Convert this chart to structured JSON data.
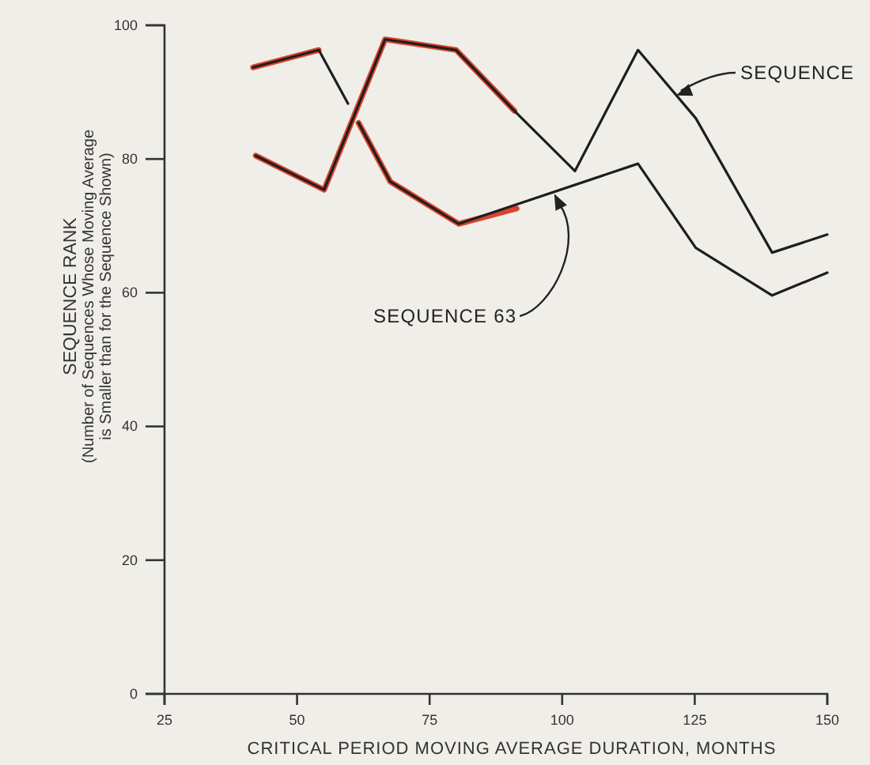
{
  "chart_data": {
    "type": "line",
    "xlabel": "CRITICAL PERIOD MOVING AVERAGE DURATION, MONTHS",
    "ylabel": "SEQUENCE RANK\n(Number of Sequences Whose Moving Average\nis Smaller than for the Sequence Shown)",
    "xlim": [
      25,
      150
    ],
    "xticks": [
      25,
      50,
      75,
      100,
      125,
      150
    ],
    "ylim": [
      0,
      100
    ],
    "yticks": [
      0,
      20,
      40,
      60,
      80,
      100
    ],
    "grid": false,
    "marker": "none",
    "line_style": "solid",
    "series": [
      {
        "color": "#d8442e",
        "x": [
          42.2,
          55.1,
          66.6,
          80.0,
          91.0
        ],
        "values": [
          80.5,
          75.4,
          97.9,
          96.3,
          87.2
        ]
      },
      {
        "color": "#d8442e",
        "x": [
          41.7,
          54.1,
          57.0,
          61.6,
          67.6,
          80.5,
          91.4
        ],
        "values": [
          93.7,
          96.3,
          null,
          85.4,
          76.6,
          70.3,
          72.6
        ]
      },
      {
        "color": "#1e1e1e",
        "x": [
          42.2,
          55.1,
          66.6,
          80.0,
          91.0,
          102.4,
          114.3,
          125.2,
          139.6,
          150.0
        ],
        "values": [
          80.5,
          75.4,
          97.9,
          96.3,
          87.2,
          78.2,
          96.3,
          86.1,
          66.0,
          68.7
        ]
      },
      {
        "color": "#1e1e1e",
        "x": [
          41.7,
          54.1,
          59.6,
          60.6,
          61.6,
          67.6,
          80.5,
          114.3,
          125.2,
          139.6,
          150.0
        ],
        "values": [
          93.7,
          96.3,
          88.3,
          null,
          85.4,
          76.6,
          70.3,
          79.3,
          66.7,
          59.6,
          63.0
        ]
      }
    ],
    "annotations": [
      {
        "text": "SEQUENCE",
        "x": 121.5,
        "y": 89.5
      },
      {
        "text": "SEQUENCE 63",
        "x": 98.5,
        "y": 74.8
      }
    ]
  }
}
